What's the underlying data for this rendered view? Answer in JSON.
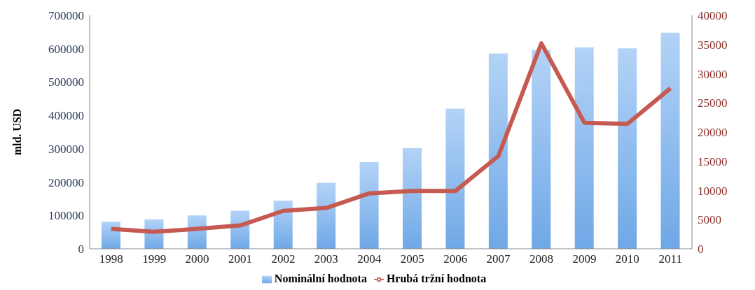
{
  "chart_data": {
    "type": "bar",
    "ylabel": "mld. USD",
    "categories": [
      "1998",
      "1999",
      "2000",
      "2001",
      "2002",
      "2003",
      "2004",
      "2005",
      "2006",
      "2007",
      "2008",
      "2009",
      "2010",
      "2011"
    ],
    "series": [
      {
        "name": "Nominální hodnota",
        "color": "#6fa8e6",
        "values": [
          81000,
          88000,
          100000,
          114000,
          144000,
          198000,
          260000,
          302000,
          420000,
          586000,
          596000,
          604000,
          601000,
          648000
        ]
      },
      {
        "name": "Hrubá tržní hodnota",
        "type": "line",
        "axis": "y2",
        "color": "#c55a52",
        "values": [
          3400,
          2900,
          3400,
          4000,
          6500,
          7000,
          9500,
          9900,
          9900,
          15900,
          35200,
          21600,
          21400,
          27500
        ]
      }
    ],
    "ylim": [
      0,
      700000
    ],
    "yticks": [
      0,
      100000,
      200000,
      300000,
      400000,
      500000,
      600000,
      700000
    ],
    "y2lim": [
      0,
      40000
    ],
    "y2ticks": [
      0,
      5000,
      10000,
      15000,
      20000,
      25000,
      30000,
      35000,
      40000
    ],
    "grid": false,
    "legend": "bottom",
    "marker": "none"
  }
}
